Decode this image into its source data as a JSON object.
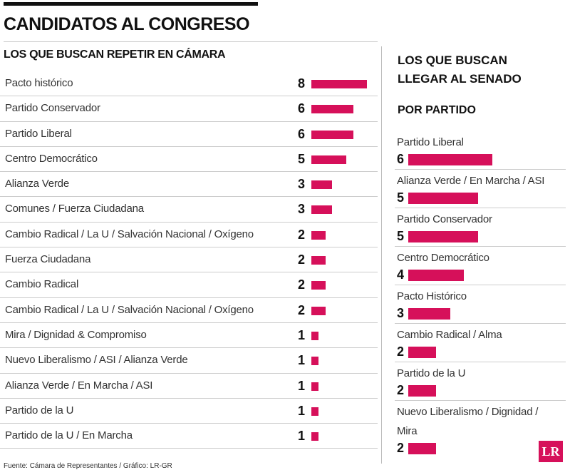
{
  "title": "CANDIDATOS AL CONGRESO",
  "source": "Fuente: Cámara de Representantes / Gráfico: LR-GR",
  "logo": "LR",
  "chart_data": [
    {
      "type": "bar",
      "title": "LOS QUE BUSCAN REPETIR EN CÁMARA",
      "color": "#d6105a",
      "categories": [
        "Pacto histórico",
        "Partido Conservador",
        "Partido Liberal",
        "Centro Democrático",
        "Alianza Verde",
        "Comunes / Fuerza Ciudadana",
        "Cambio Radical / La U / Salvación Nacional / Oxígeno",
        "Fuerza Ciudadana",
        "Cambio Radical",
        "Cambio Radical / La U / Salvación Nacional / Oxígeno",
        "Mira / Dignidad & Compromiso",
        "Nuevo Liberalismo / ASI / Alianza Verde",
        "Alianza Verde / En Marcha / ASI",
        "Partido de la U",
        "Partido de la U / En Marcha"
      ],
      "values": [
        8,
        6,
        6,
        5,
        3,
        3,
        2,
        2,
        2,
        2,
        1,
        1,
        1,
        1,
        1
      ]
    },
    {
      "type": "bar",
      "title": "LOS QUE BUSCAN LLEGAR AL SENADO",
      "subtitle": "POR PARTIDO",
      "color": "#d6105a",
      "categories": [
        "Partido Liberal",
        "Alianza Verde / En Marcha / ASI",
        "Partido Conservador",
        "Centro Democrático",
        "Pacto Histórico",
        "Cambio Radical / Alma",
        "Partido de la U",
        "Nuevo Liberalismo / Dignidad / Mira"
      ],
      "values": [
        6,
        5,
        5,
        4,
        3,
        2,
        2,
        2
      ]
    }
  ]
}
